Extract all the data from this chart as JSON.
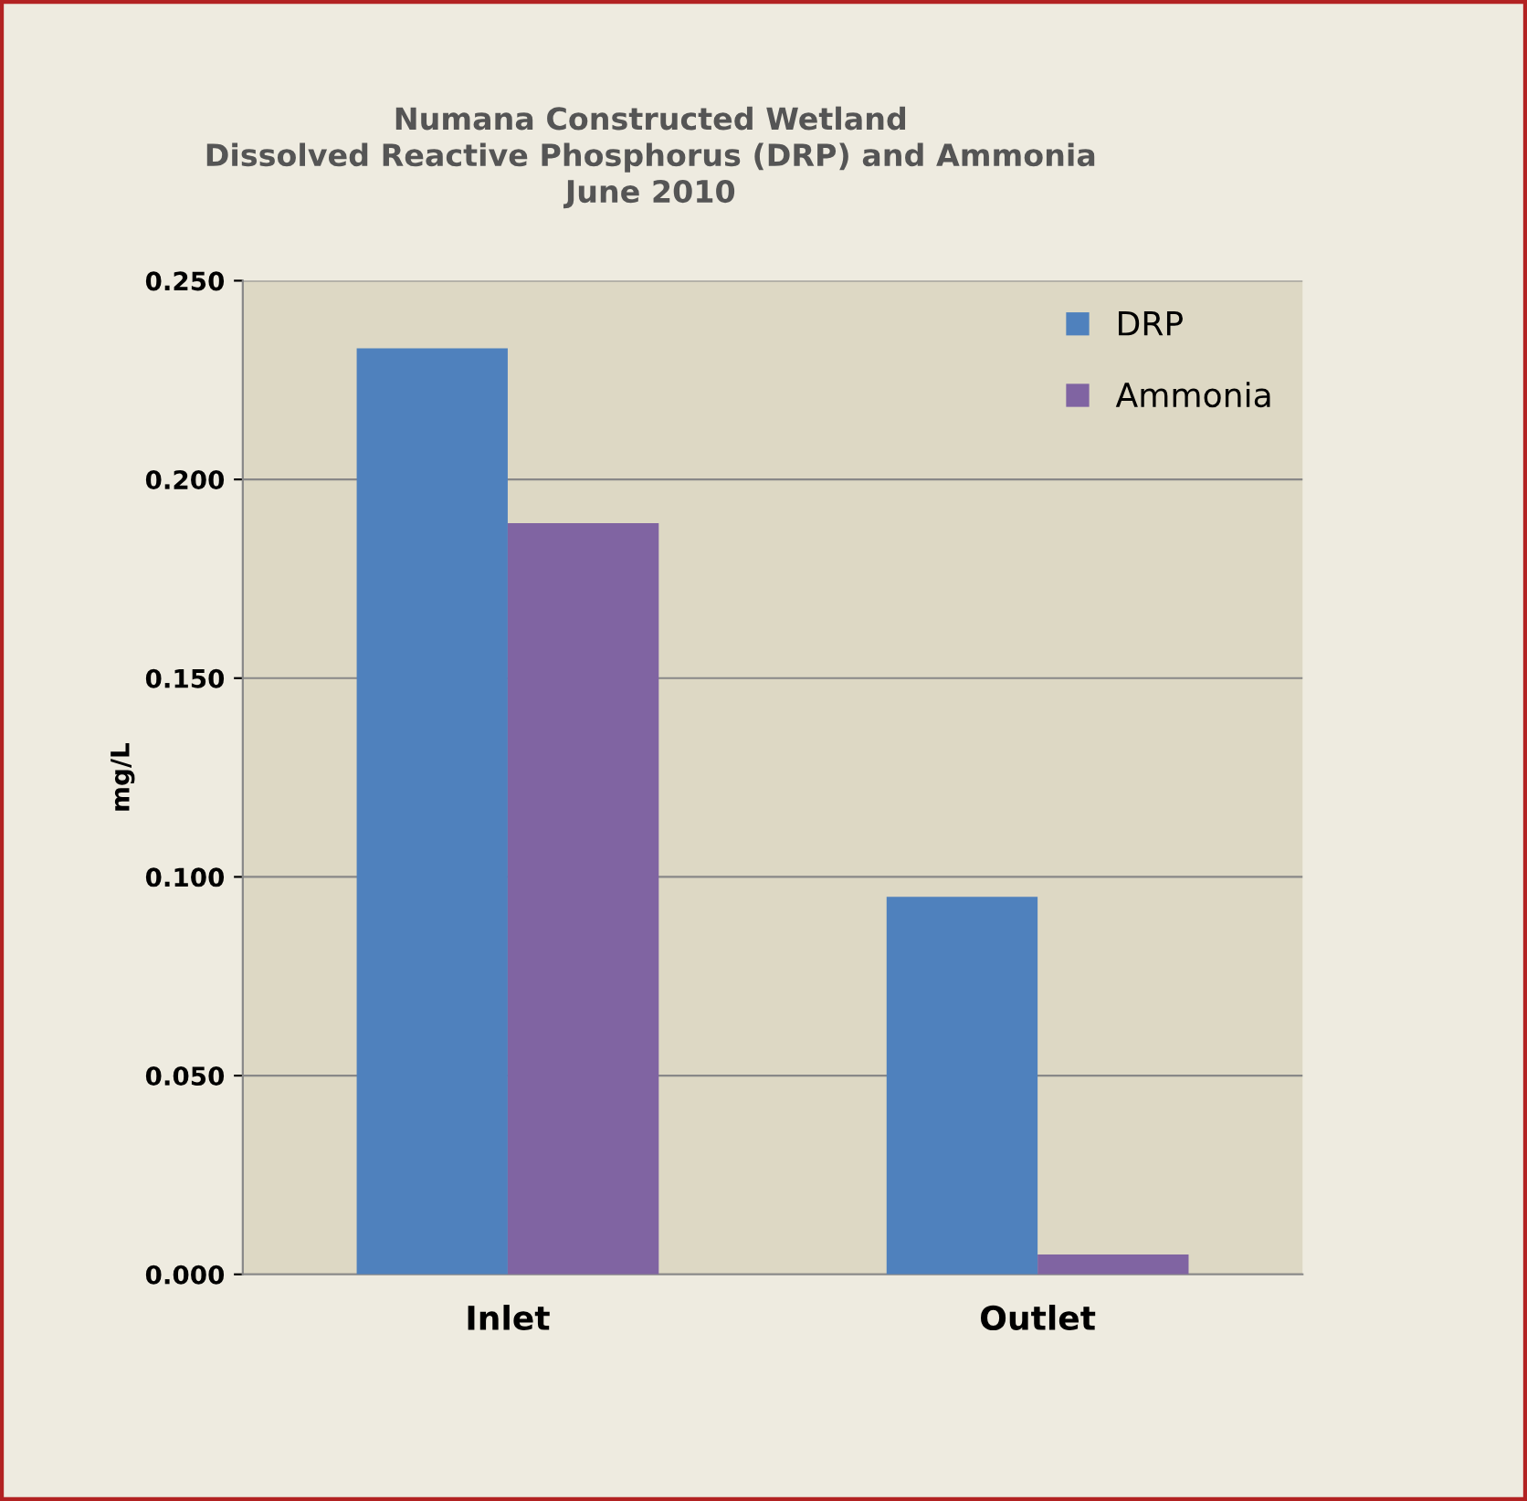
{
  "chart_data": {
    "type": "bar",
    "title": "Numana Constructed Wetland\nDissolved Reactive Phosphorus (DRP) and Ammonia\nJune 2010",
    "ylabel": "mg/L",
    "categories": [
      "Inlet",
      "Outlet"
    ],
    "series": [
      {
        "name": "DRP",
        "color": "#4f81bd",
        "values": [
          0.233,
          0.095
        ]
      },
      {
        "name": "Ammonia",
        "color": "#8064a2",
        "values": [
          0.189,
          0.005
        ]
      }
    ],
    "ylim": [
      0,
      0.25
    ],
    "yticks": [
      {
        "value": 0,
        "label": "0.000"
      },
      {
        "value": 0.05,
        "label": "0.050"
      },
      {
        "value": 0.1,
        "label": "0.100"
      },
      {
        "value": 0.15,
        "label": "0.150"
      },
      {
        "value": 0.2,
        "label": "0.200"
      },
      {
        "value": 0.25,
        "label": "0.250"
      }
    ],
    "grid": "y",
    "legend": "top right"
  }
}
